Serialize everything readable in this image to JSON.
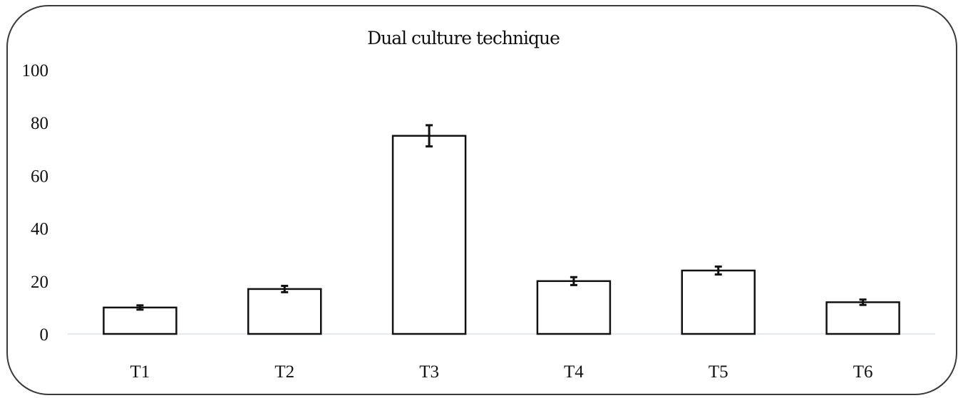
{
  "chart_data": {
    "type": "bar",
    "title": "Dual culture technique",
    "categories": [
      "T1",
      "T2",
      "T3",
      "T4",
      "T5",
      "T6"
    ],
    "values": [
      10,
      17,
      75,
      20,
      24,
      12
    ],
    "errors": [
      0.8,
      1.2,
      4,
      1.5,
      1.5,
      1
    ],
    "ylim": [
      0,
      100
    ],
    "yticks": [
      0,
      20,
      40,
      60,
      80,
      100
    ],
    "xlabel": "",
    "ylabel": "",
    "grid": false,
    "legend": "none",
    "colors": {
      "bar_fill": "#ffffff",
      "bar_stroke": "#111111",
      "baseline": "#dce3ef"
    }
  }
}
